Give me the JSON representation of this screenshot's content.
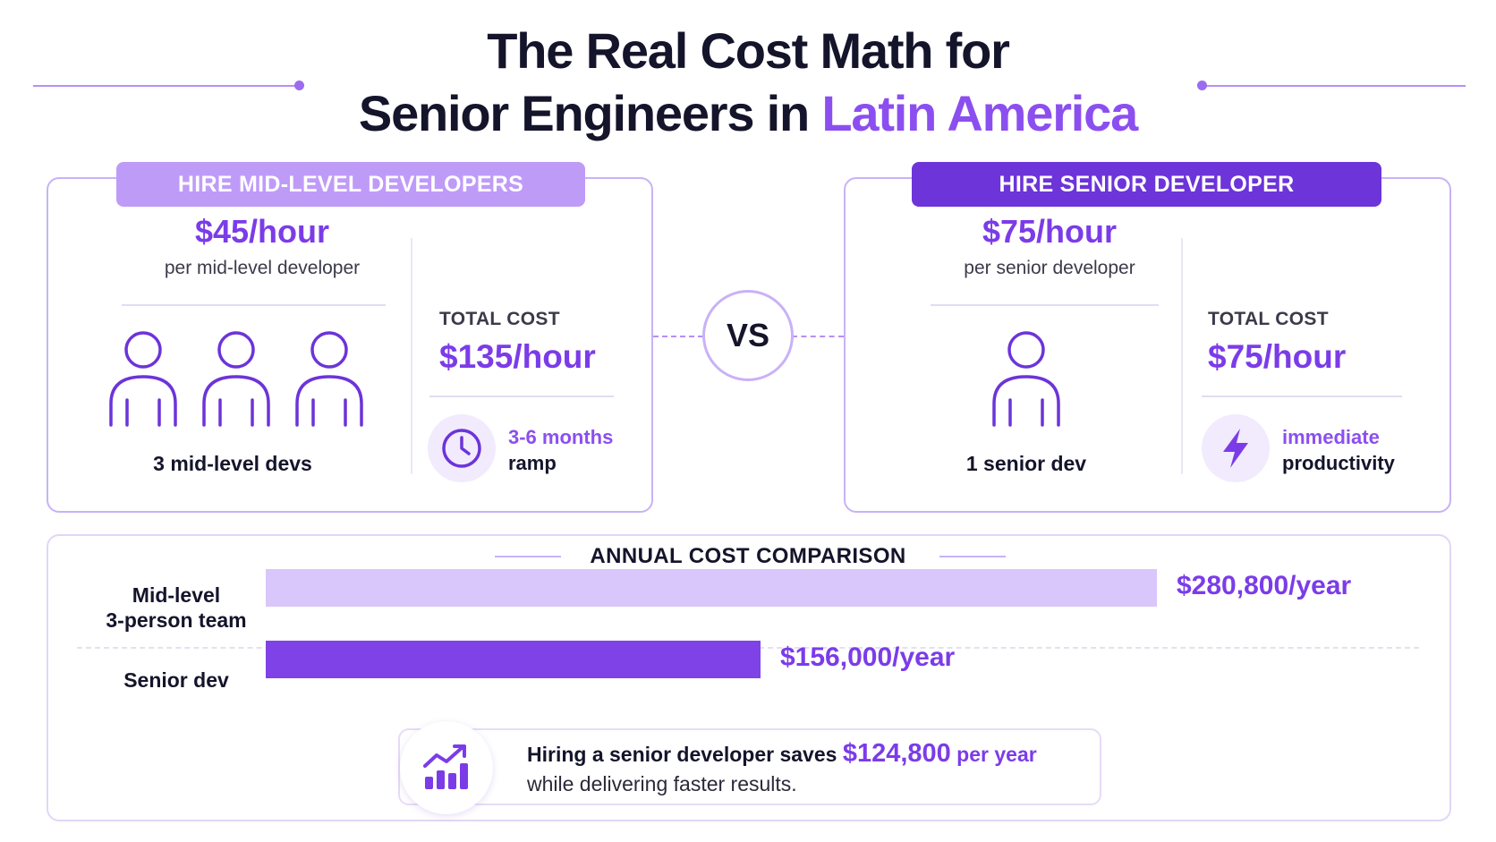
{
  "title": {
    "line1": "The Real Cost Math for",
    "line2_prefix": "Senior Engineers in ",
    "line2_accent": "Latin America"
  },
  "mid_card": {
    "header": "HIRE MID-LEVEL DEVELOPERS",
    "rate": "$45/hour",
    "rate_sub": "per mid-level developer",
    "people_count": 3,
    "people_label": "3 mid-level devs",
    "total_label": "TOTAL COST",
    "total_value": "$135/hour",
    "badge_icon": "clock-icon",
    "badge_line1": "3-6 months",
    "badge_line2": "ramp"
  },
  "vs_label": "VS",
  "senior_card": {
    "header": "HIRE SENIOR DEVELOPER",
    "rate": "$75/hour",
    "rate_sub": "per senior developer",
    "people_count": 1,
    "people_label": "1 senior dev",
    "total_label": "TOTAL COST",
    "total_value": "$75/hour",
    "badge_icon": "lightning-icon",
    "badge_line1": "immediate",
    "badge_line2": "productivity"
  },
  "annual": {
    "title": "ANNUAL COST COMPARISON"
  },
  "chart_data": {
    "type": "bar",
    "orientation": "horizontal",
    "title": "ANNUAL COST COMPARISON",
    "categories": [
      "Mid-level 3-person team",
      "Senior dev"
    ],
    "category_lines": [
      [
        "Mid-level",
        "3-person team"
      ],
      [
        "Senior dev"
      ]
    ],
    "values": [
      280800,
      156000
    ],
    "value_labels": [
      "$280,800/year",
      "$156,000/year"
    ],
    "colors": [
      "#d9c6fa",
      "#7f42e6"
    ],
    "xlim": [
      0,
      280800
    ],
    "grid": false,
    "legend": "none"
  },
  "callout": {
    "icon": "growth-chart-icon",
    "text_before": "Hiring a senior developer saves ",
    "amount": "$124,800",
    "unit": " per year",
    "line2": "while delivering faster results."
  },
  "colors": {
    "accent": "#7b3ce8",
    "accent_light": "#bf9bf8",
    "accent_dark": "#6c34d9",
    "text": "#14142b"
  }
}
